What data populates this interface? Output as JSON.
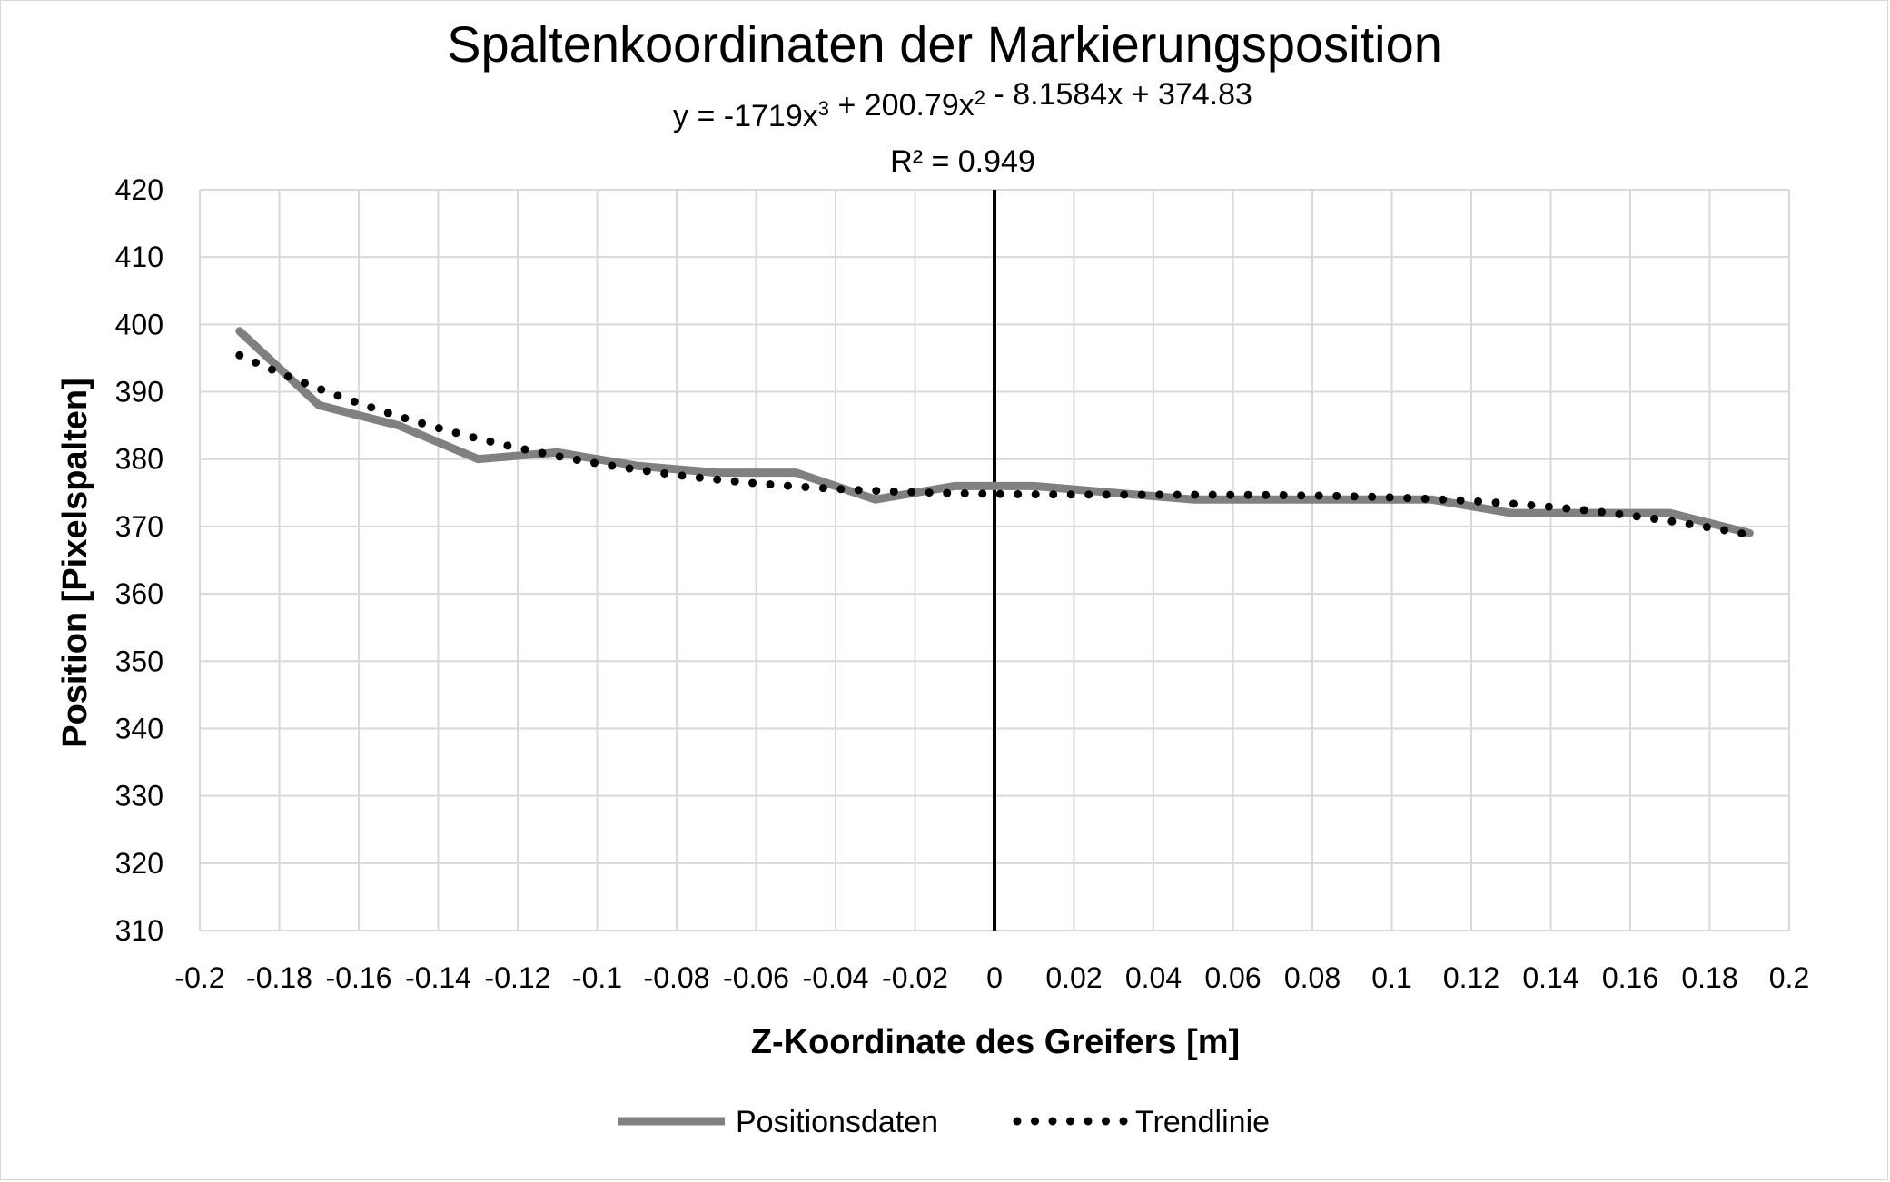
{
  "chart_data": {
    "type": "line",
    "title": "Spaltenkoordinaten der Markierungsposition",
    "trendline_equation": "y = -1719x³ + 200.79x² - 8.1584x + 374.83",
    "trendline_r2": "R² = 0.949",
    "xlabel": "Z-Koordinate des Greifers [m]",
    "ylabel": "Position [Pixelspalten]",
    "xlim": [
      -0.2,
      0.2
    ],
    "ylim": [
      310,
      420
    ],
    "x_ticks": [
      -0.2,
      -0.18,
      -0.16,
      -0.14,
      -0.12,
      -0.1,
      -0.08,
      -0.06,
      -0.04,
      -0.02,
      0,
      0.02,
      0.04,
      0.06,
      0.08,
      0.1,
      0.12,
      0.14,
      0.16,
      0.18,
      0.2
    ],
    "x_tick_labels": [
      "-0.2",
      "-0.18",
      "-0.16",
      "-0.14",
      "-0.12",
      "-0.1",
      "-0.08",
      "-0.06",
      "-0.04",
      "-0.02",
      "0",
      "0.02",
      "0.04",
      "0.06",
      "0.08",
      "0.1",
      "0.12",
      "0.14",
      "0.16",
      "0.18",
      "0.2"
    ],
    "y_ticks": [
      310,
      320,
      330,
      340,
      350,
      360,
      370,
      380,
      390,
      400,
      410,
      420
    ],
    "grid": true,
    "legend_position": "bottom",
    "series": [
      {
        "name": "Positionsdaten",
        "style": "solid",
        "color": "#808080",
        "x": [
          -0.19,
          -0.17,
          -0.15,
          -0.13,
          -0.11,
          -0.09,
          -0.07,
          -0.05,
          -0.03,
          -0.01,
          0.01,
          0.03,
          0.05,
          0.07,
          0.09,
          0.11,
          0.13,
          0.15,
          0.17,
          0.19
        ],
        "values": [
          399,
          388,
          385,
          380,
          381,
          379,
          378,
          378,
          374,
          376,
          376,
          375,
          374,
          374,
          374,
          374,
          372,
          372,
          372,
          369
        ]
      },
      {
        "name": "Trendlinie",
        "style": "dotted",
        "color": "#000000",
        "fit": {
          "a3": -1719,
          "a2": 200.79,
          "a1": -8.1584,
          "a0": 374.83
        },
        "x_range": [
          -0.19,
          0.19
        ]
      }
    ],
    "vertical_line": {
      "x": 0,
      "color": "#000000"
    }
  }
}
